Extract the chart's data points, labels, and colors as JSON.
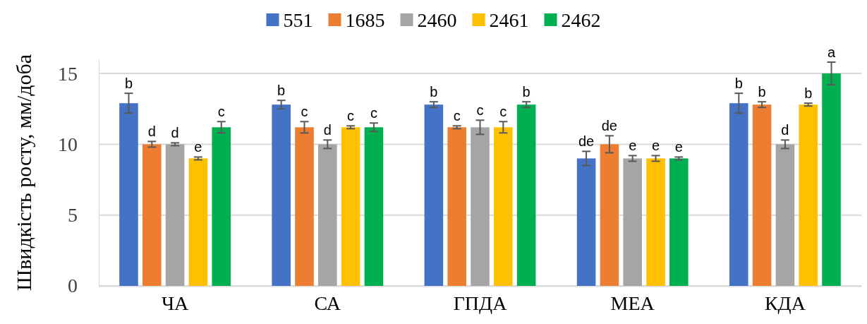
{
  "chart_data": {
    "type": "bar",
    "ylabel": "Швидкість росту, мм/доба",
    "categories": [
      "ЧА",
      "СА",
      "ГПДА",
      "МЕА",
      "КДА"
    ],
    "series": [
      {
        "name": "551",
        "color": "#4472c4",
        "values": [
          12.9,
          12.8,
          12.8,
          9.0,
          12.9
        ],
        "errors": [
          0.7,
          0.3,
          0.2,
          0.5,
          0.7
        ],
        "value_labels": [
          "b",
          "b",
          "b",
          "de",
          "b"
        ]
      },
      {
        "name": "1685",
        "color": "#ed7d31",
        "values": [
          10.0,
          11.2,
          11.2,
          10.0,
          12.8
        ],
        "errors": [
          0.2,
          0.4,
          0.1,
          0.6,
          0.2
        ],
        "value_labels": [
          "d",
          "c",
          "c",
          "de",
          "b"
        ]
      },
      {
        "name": "2460",
        "color": "#a5a5a5",
        "values": [
          10.0,
          10.0,
          11.2,
          9.0,
          10.0
        ],
        "errors": [
          0.1,
          0.3,
          0.5,
          0.2,
          0.3
        ],
        "value_labels": [
          "d",
          "d",
          "c",
          "e",
          "d"
        ]
      },
      {
        "name": "2461",
        "color": "#ffc000",
        "values": [
          9.0,
          11.2,
          11.2,
          9.0,
          12.8
        ],
        "errors": [
          0.1,
          0.1,
          0.4,
          0.2,
          0.1
        ],
        "value_labels": [
          "e",
          "c",
          "c",
          "e",
          "b"
        ]
      },
      {
        "name": "2462",
        "color": "#00b050",
        "values": [
          11.2,
          11.2,
          12.8,
          9.0,
          15.0
        ],
        "errors": [
          0.4,
          0.3,
          0.2,
          0.1,
          0.8
        ],
        "value_labels": [
          "c",
          "c",
          "b",
          "e",
          "a"
        ]
      }
    ],
    "ylim": [
      0,
      16
    ],
    "yticks": [
      0,
      5,
      10,
      15
    ],
    "grid": "y",
    "legend": "top"
  }
}
